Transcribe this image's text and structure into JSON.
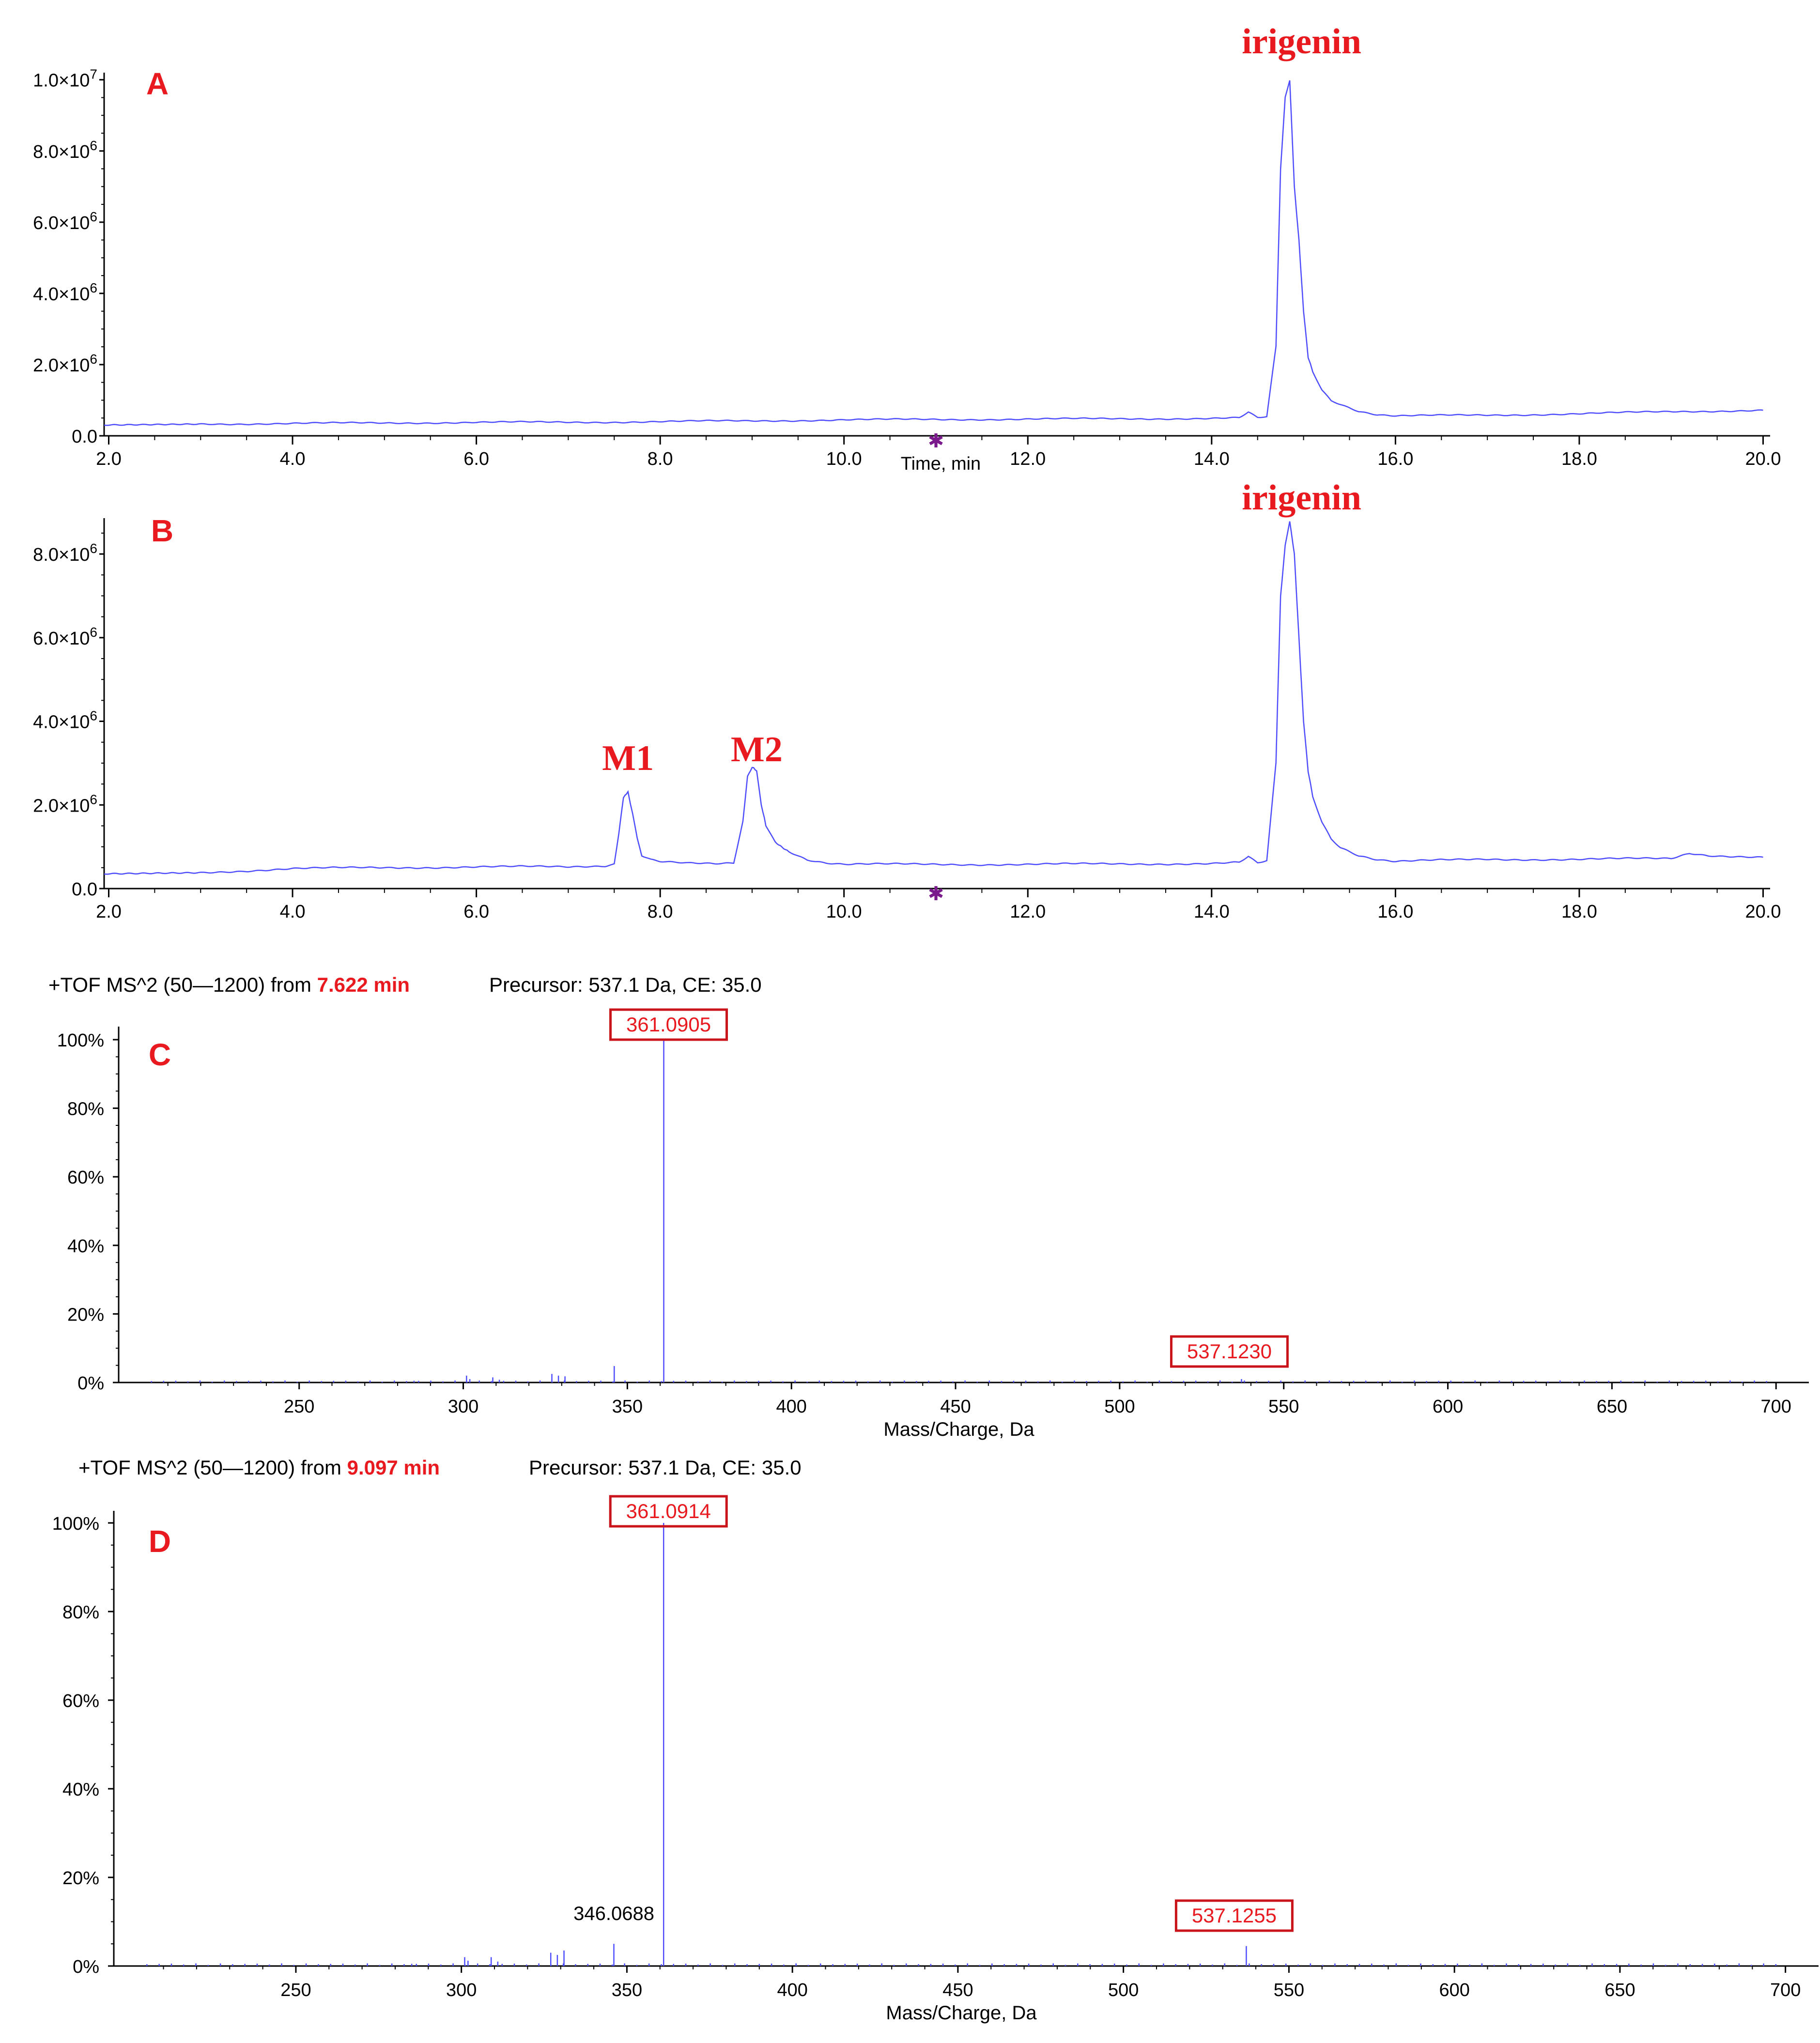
{
  "colors": {
    "trace": "#4d4dff",
    "annotation_red": "#e8191f",
    "marker_purple": "#7a1a8c",
    "axis": "#000000"
  },
  "chart_data": [
    {
      "id": "A",
      "type": "line",
      "panel_label": "A",
      "xlabel": "Time, min",
      "ylabel": "",
      "xlim": [
        1.95,
        20.05
      ],
      "ylim": [
        0,
        10200000
      ],
      "x_ticks": [
        "2.0",
        "4.0",
        "6.0",
        "8.0",
        "10.0",
        "12.0",
        "14.0",
        "16.0",
        "18.0",
        "20.0"
      ],
      "y_ticks": [
        {
          "mantissa": "0.0",
          "exp": ""
        },
        {
          "mantissa": "2.0×10",
          "exp": "6"
        },
        {
          "mantissa": "4.0×10",
          "exp": "6"
        },
        {
          "mantissa": "6.0×10",
          "exp": "6"
        },
        {
          "mantissa": "8.0×10",
          "exp": "6"
        },
        {
          "mantissa": "1.0×10",
          "exp": "7"
        }
      ],
      "marker_glyph": "✱",
      "marker_x": 11.0,
      "peaks": [
        {
          "label": "irigenin",
          "x": 14.9
        }
      ],
      "series": [
        {
          "x": [
            1.95,
            3.0,
            4.0,
            5.0,
            6.0,
            7.0,
            8.0,
            9.0,
            10.0,
            11.0,
            12.0,
            13.0,
            14.0,
            14.3,
            14.4,
            14.5,
            14.6,
            14.7,
            14.75,
            14.8,
            14.85,
            14.9,
            14.95,
            15.0,
            15.05,
            15.1,
            15.2,
            15.3,
            15.4,
            15.5,
            15.6,
            15.8,
            16.0,
            17.0,
            18.0,
            19.0,
            20.0
          ],
          "y": [
            300000,
            330000,
            350000,
            360000,
            380000,
            380000,
            400000,
            420000,
            450000,
            460000,
            470000,
            480000,
            490000,
            500000,
            650000,
            500000,
            520000,
            2500000,
            7500000,
            9500000,
            10000000,
            7000000,
            5500000,
            3500000,
            2200000,
            1800000,
            1300000,
            1000000,
            900000,
            800000,
            700000,
            600000,
            560000,
            580000,
            620000,
            680000,
            720000
          ]
        }
      ]
    },
    {
      "id": "B",
      "type": "line",
      "panel_label": "B",
      "xlabel": "",
      "ylabel": "",
      "xlim": [
        1.95,
        20.05
      ],
      "ylim": [
        0,
        8800000
      ],
      "x_ticks": [
        "2.0",
        "4.0",
        "6.0",
        "8.0",
        "10.0",
        "12.0",
        "14.0",
        "16.0",
        "18.0",
        "20.0"
      ],
      "y_ticks": [
        {
          "mantissa": "0.0",
          "exp": ""
        },
        {
          "mantissa": "2.0×10",
          "exp": "6"
        },
        {
          "mantissa": "4.0×10",
          "exp": "6"
        },
        {
          "mantissa": "6.0×10",
          "exp": "6"
        },
        {
          "mantissa": "8.0×10",
          "exp": "6"
        }
      ],
      "marker_glyph": "✱",
      "marker_x": 11.0,
      "peaks": [
        {
          "label": "M1",
          "x": 7.65
        },
        {
          "label": "M2",
          "x": 9.05
        },
        {
          "label": "irigenin",
          "x": 14.9
        }
      ],
      "series": [
        {
          "x": [
            1.95,
            3.0,
            4.0,
            5.0,
            6.0,
            7.0,
            7.4,
            7.5,
            7.55,
            7.6,
            7.65,
            7.7,
            7.75,
            7.8,
            7.9,
            8.0,
            8.3,
            8.6,
            8.8,
            8.9,
            8.95,
            9.0,
            9.05,
            9.1,
            9.15,
            9.25,
            9.4,
            9.6,
            9.8,
            10.0,
            11.0,
            12.0,
            13.0,
            14.0,
            14.3,
            14.4,
            14.5,
            14.6,
            14.7,
            14.75,
            14.8,
            14.85,
            14.9,
            14.95,
            15.0,
            15.05,
            15.1,
            15.2,
            15.3,
            15.4,
            15.5,
            15.6,
            15.8,
            16.0,
            17.0,
            18.0,
            19.0,
            19.2,
            19.4,
            20.0
          ],
          "y": [
            350000,
            380000,
            480000,
            500000,
            520000,
            520000,
            550000,
            600000,
            1300000,
            2200000,
            2300000,
            1800000,
            1200000,
            800000,
            700000,
            650000,
            600000,
            580000,
            600000,
            1600000,
            2700000,
            2900000,
            2800000,
            2000000,
            1500000,
            1100000,
            900000,
            700000,
            620000,
            580000,
            580000,
            580000,
            590000,
            600000,
            620000,
            750000,
            600000,
            650000,
            3000000,
            7000000,
            8200000,
            8800000,
            8000000,
            6000000,
            4000000,
            2800000,
            2200000,
            1600000,
            1200000,
            1000000,
            900000,
            800000,
            700000,
            650000,
            700000,
            700000,
            720000,
            850000,
            800000,
            750000
          ]
        }
      ]
    },
    {
      "id": "C",
      "type": "bar",
      "panel_label": "C",
      "header": {
        "prefix": "+TOF MS^2 (50—1200) from ",
        "time": "7.622 min",
        "precursor": "Precursor: 537.1 Da, CE: 35.0"
      },
      "xlabel": "Mass/Charge, Da",
      "xlim": [
        195,
        710
      ],
      "ylim": [
        0,
        100
      ],
      "x_ticks": [
        "250",
        "300",
        "350",
        "400",
        "450",
        "500",
        "550",
        "600",
        "650",
        "700"
      ],
      "y_ticks": [
        "0%",
        "20%",
        "40%",
        "60%",
        "80%",
        "100%"
      ],
      "boxed_labels": [
        {
          "text": "361.0905",
          "x": 361.0905
        },
        {
          "text": "537.1230",
          "x": 537.123
        }
      ],
      "sticks": {
        "x": [
          285,
          301,
          302,
          309,
          311,
          327,
          329,
          331,
          346,
          361.0905,
          537.123
        ],
        "y": [
          0.5,
          2,
          1,
          1.5,
          0.8,
          2.5,
          2,
          1.8,
          4.8,
          100,
          1
        ]
      }
    },
    {
      "id": "D",
      "type": "bar",
      "panel_label": "D",
      "header": {
        "prefix": "+TOF MS^2 (50—1200) from ",
        "time": "9.097 min",
        "precursor": "Precursor: 537.1 Da, CE: 35.0"
      },
      "xlabel": "Mass/Charge, Da",
      "xlim": [
        195,
        710
      ],
      "ylim": [
        0,
        100
      ],
      "x_ticks": [
        "250",
        "300",
        "350",
        "400",
        "450",
        "500",
        "550",
        "600",
        "650",
        "700"
      ],
      "y_ticks": [
        "0%",
        "20%",
        "40%",
        "60%",
        "80%",
        "100%"
      ],
      "boxed_labels": [
        {
          "text": "361.0914",
          "x": 361.0914
        },
        {
          "text": "537.1255",
          "x": 537.1255
        }
      ],
      "plain_labels": [
        {
          "text": "346.0688",
          "x": 346.0688
        }
      ],
      "sticks": {
        "x": [
          285,
          301,
          302,
          309,
          311,
          327,
          329,
          331,
          346.0688,
          361.0914,
          537.1255
        ],
        "y": [
          0.5,
          2,
          1.2,
          2,
          1,
          3,
          2.5,
          3.5,
          5,
          100,
          4.5
        ]
      }
    }
  ]
}
